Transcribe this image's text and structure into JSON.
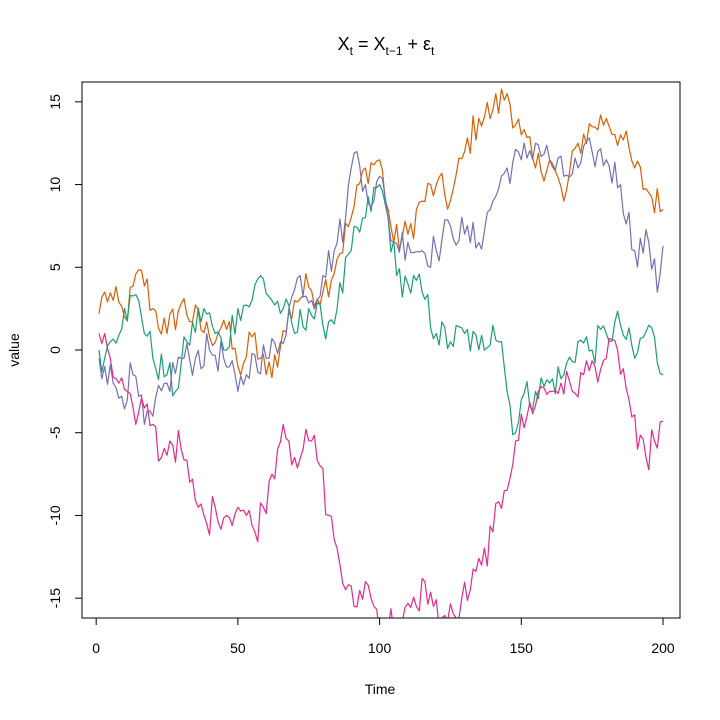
{
  "chart_data": {
    "type": "line",
    "title": {
      "main": "X",
      "sub_t": "t",
      "eq": " = X",
      "sub_t1": "t−1",
      "plus": " + ε",
      "sub_e": "t"
    },
    "xlabel": "Time",
    "ylabel": "value",
    "xlim": [
      -5,
      206
    ],
    "ylim": [
      -16.2,
      16.2
    ],
    "xticks": [
      0,
      50,
      100,
      150,
      200
    ],
    "yticks": [
      -15,
      -10,
      -5,
      0,
      5,
      10,
      15
    ],
    "series": [
      {
        "color": "#D95F02",
        "keypoints": [
          [
            1,
            2.2
          ],
          [
            3,
            3.5
          ],
          [
            6,
            3.0
          ],
          [
            10,
            2.0
          ],
          [
            16,
            4.8
          ],
          [
            20,
            2.5
          ],
          [
            25,
            1.0
          ],
          [
            30,
            2.8
          ],
          [
            40,
            0.8
          ],
          [
            45,
            1.8
          ],
          [
            50,
            -1.0
          ],
          [
            52,
            -0.8
          ],
          [
            55,
            0.8
          ],
          [
            60,
            -1.5
          ],
          [
            65,
            0.2
          ],
          [
            70,
            3.0
          ],
          [
            75,
            3.8
          ],
          [
            80,
            3.5
          ],
          [
            85,
            5.5
          ],
          [
            90,
            8.0
          ],
          [
            95,
            11.0
          ],
          [
            100,
            11.5
          ],
          [
            103,
            8.5
          ],
          [
            105,
            6.5
          ],
          [
            110,
            7.0
          ],
          [
            115,
            9.0
          ],
          [
            120,
            10.0
          ],
          [
            125,
            9.0
          ],
          [
            130,
            12.0
          ],
          [
            135,
            14.0
          ],
          [
            140,
            14.5
          ],
          [
            145,
            15.5
          ],
          [
            150,
            13.0
          ],
          [
            155,
            11.0
          ],
          [
            160,
            11.5
          ],
          [
            165,
            9.0
          ],
          [
            170,
            12.5
          ],
          [
            175,
            13.5
          ],
          [
            180,
            14.0
          ],
          [
            185,
            13.0
          ],
          [
            190,
            11.0
          ],
          [
            195,
            9.5
          ],
          [
            200,
            8.5
          ]
        ]
      },
      {
        "color": "#1B9E77",
        "keypoints": [
          [
            1,
            0.0
          ],
          [
            3,
            -0.5
          ],
          [
            5,
            0.5
          ],
          [
            10,
            2.5
          ],
          [
            15,
            3.0
          ],
          [
            20,
            -0.5
          ],
          [
            25,
            -1.5
          ],
          [
            28,
            -2.5
          ],
          [
            32,
            0.5
          ],
          [
            38,
            2.5
          ],
          [
            42,
            1.0
          ],
          [
            45,
            0.0
          ],
          [
            50,
            2.5
          ],
          [
            55,
            3.0
          ],
          [
            58,
            4.5
          ],
          [
            62,
            3.0
          ],
          [
            66,
            2.5
          ],
          [
            70,
            1.0
          ],
          [
            75,
            2.5
          ],
          [
            80,
            1.5
          ],
          [
            85,
            2.5
          ],
          [
            90,
            6.0
          ],
          [
            95,
            8.0
          ],
          [
            100,
            10.0
          ],
          [
            103,
            8.0
          ],
          [
            106,
            4.5
          ],
          [
            110,
            4.0
          ],
          [
            115,
            3.5
          ],
          [
            120,
            1.0
          ],
          [
            125,
            0.5
          ],
          [
            130,
            1.0
          ],
          [
            135,
            0.0
          ],
          [
            140,
            1.5
          ],
          [
            143,
            0.5
          ],
          [
            145,
            -2.5
          ],
          [
            148,
            -5.0
          ],
          [
            150,
            -3.0
          ],
          [
            155,
            -2.5
          ],
          [
            160,
            -2.0
          ],
          [
            165,
            -1.5
          ],
          [
            170,
            0.5
          ],
          [
            175,
            0.0
          ],
          [
            180,
            1.0
          ],
          [
            185,
            1.5
          ],
          [
            190,
            -0.5
          ],
          [
            195,
            1.5
          ],
          [
            200,
            -1.5
          ]
        ]
      },
      {
        "color": "#7570B3",
        "keypoints": [
          [
            1,
            -0.5
          ],
          [
            3,
            -1.0
          ],
          [
            6,
            -2.0
          ],
          [
            9,
            -2.8
          ],
          [
            13,
            -1.5
          ],
          [
            17,
            -4.5
          ],
          [
            20,
            -4.0
          ],
          [
            25,
            -2.0
          ],
          [
            30,
            -0.5
          ],
          [
            35,
            -0.5
          ],
          [
            40,
            0.0
          ],
          [
            45,
            -0.5
          ],
          [
            50,
            -2.5
          ],
          [
            53,
            -1.5
          ],
          [
            56,
            -0.3
          ],
          [
            60,
            -0.5
          ],
          [
            65,
            0.5
          ],
          [
            68,
            2.5
          ],
          [
            72,
            4.5
          ],
          [
            76,
            3.0
          ],
          [
            80,
            4.5
          ],
          [
            84,
            6.0
          ],
          [
            88,
            8.0
          ],
          [
            90,
            11.0
          ],
          [
            92,
            12.0
          ],
          [
            95,
            10.0
          ],
          [
            98,
            9.0
          ],
          [
            100,
            10.5
          ],
          [
            103,
            8.0
          ],
          [
            105,
            6.5
          ],
          [
            110,
            6.5
          ],
          [
            115,
            6.0
          ],
          [
            120,
            6.0
          ],
          [
            125,
            7.5
          ],
          [
            130,
            7.0
          ],
          [
            135,
            6.5
          ],
          [
            140,
            9.0
          ],
          [
            145,
            11.0
          ],
          [
            150,
            11.5
          ],
          [
            155,
            12.5
          ],
          [
            160,
            11.5
          ],
          [
            165,
            10.5
          ],
          [
            170,
            11.0
          ],
          [
            175,
            12.0
          ],
          [
            180,
            11.5
          ],
          [
            185,
            10.0
          ],
          [
            190,
            6.0
          ],
          [
            195,
            6.5
          ],
          [
            198,
            3.5
          ],
          [
            200,
            6.3
          ]
        ]
      },
      {
        "color": "#E7298A",
        "keypoints": [
          [
            1,
            1.0
          ],
          [
            3,
            1.0
          ],
          [
            5,
            -0.5
          ],
          [
            8,
            -2.0
          ],
          [
            11,
            -2.5
          ],
          [
            14,
            -4.5
          ],
          [
            17,
            -3.5
          ],
          [
            20,
            -4.5
          ],
          [
            23,
            -6.5
          ],
          [
            26,
            -5.5
          ],
          [
            30,
            -6.0
          ],
          [
            33,
            -8.0
          ],
          [
            36,
            -9.5
          ],
          [
            39,
            -10.5
          ],
          [
            42,
            -9.5
          ],
          [
            46,
            -10.0
          ],
          [
            50,
            -9.5
          ],
          [
            53,
            -10.0
          ],
          [
            56,
            -11.0
          ],
          [
            59,
            -9.5
          ],
          [
            62,
            -7.5
          ],
          [
            64,
            -6.0
          ],
          [
            66,
            -4.5
          ],
          [
            68,
            -5.5
          ],
          [
            70,
            -6.5
          ],
          [
            73,
            -6.0
          ],
          [
            76,
            -5.5
          ],
          [
            79,
            -7.0
          ],
          [
            82,
            -10.0
          ],
          [
            85,
            -12.0
          ],
          [
            88,
            -14.5
          ],
          [
            91,
            -15.5
          ],
          [
            95,
            -14.0
          ],
          [
            98,
            -15.5
          ],
          [
            101,
            -16.4
          ],
          [
            108,
            -16.4
          ],
          [
            113,
            -15.5
          ],
          [
            116,
            -14.0
          ],
          [
            119,
            -15.5
          ],
          [
            122,
            -16.2
          ],
          [
            127,
            -16.2
          ],
          [
            129,
            -15.0
          ],
          [
            132,
            -14.5
          ],
          [
            136,
            -13.0
          ],
          [
            140,
            -11.0
          ],
          [
            144,
            -8.5
          ],
          [
            148,
            -5.5
          ],
          [
            152,
            -4.0
          ],
          [
            156,
            -2.5
          ],
          [
            160,
            -2.5
          ],
          [
            164,
            -2.0
          ],
          [
            168,
            -2.5
          ],
          [
            172,
            -1.5
          ],
          [
            176,
            -1.0
          ],
          [
            180,
            -0.5
          ],
          [
            184,
            0.0
          ],
          [
            188,
            -3.0
          ],
          [
            191,
            -6.0
          ],
          [
            194,
            -6.5
          ],
          [
            197,
            -5.5
          ],
          [
            200,
            -4.3
          ]
        ]
      }
    ]
  }
}
